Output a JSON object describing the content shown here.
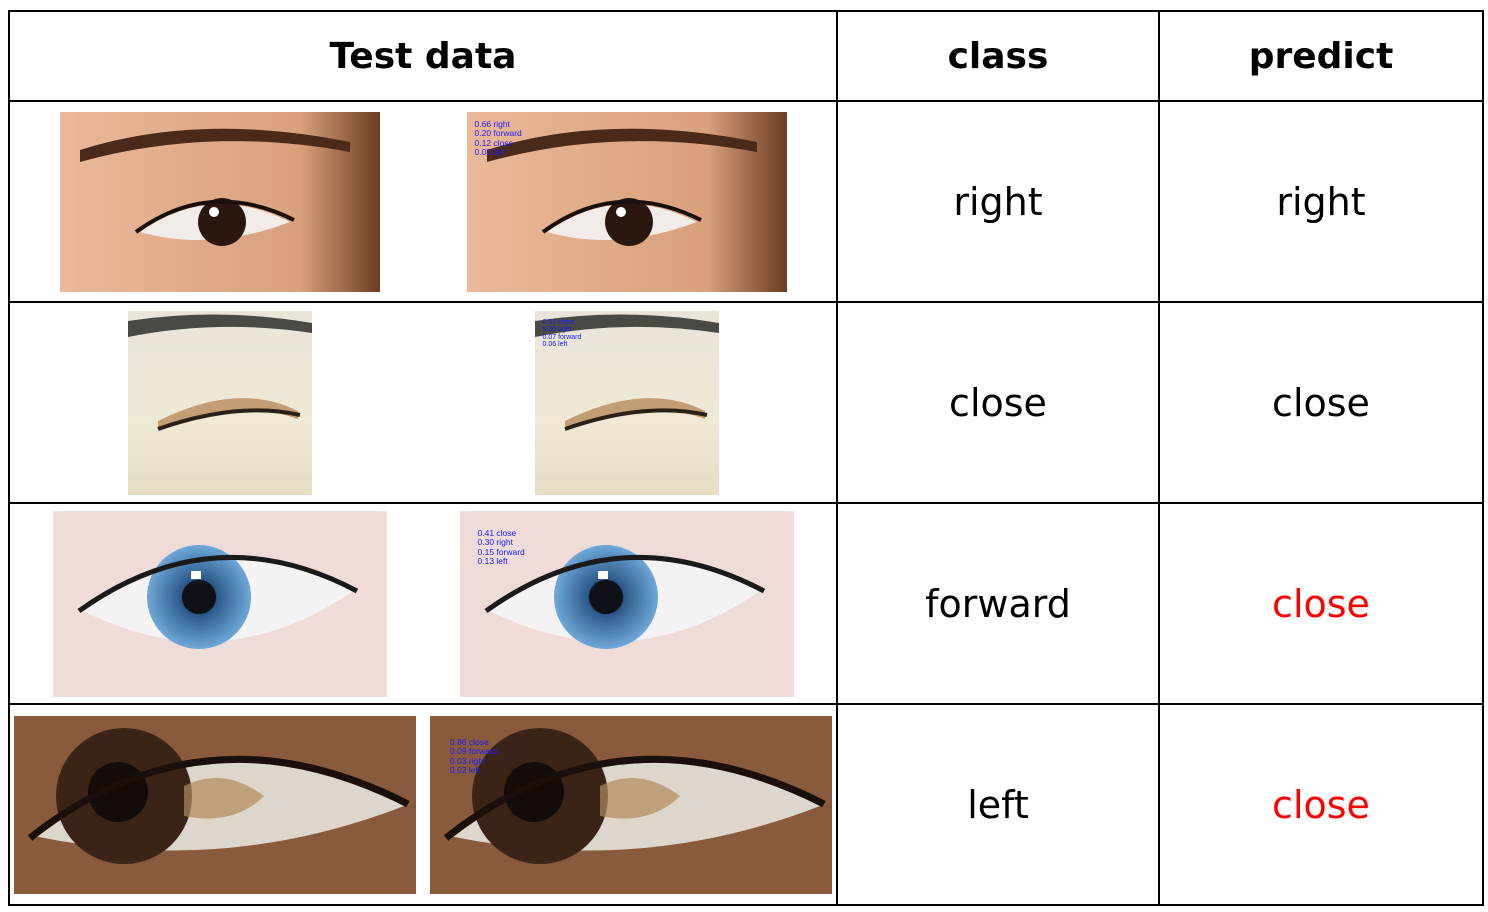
{
  "headers": {
    "test_data": "Test data",
    "class": "class",
    "predict": "predict"
  },
  "colors": {
    "border": "#000000",
    "correct": "#000000",
    "wrong": "#ff0000",
    "overlay_text": "#1a1aff"
  },
  "rows": [
    {
      "class": "right",
      "predict": "right",
      "correct": true,
      "probs": [
        "0.66 right",
        "0.20 forward",
        "0.12 close",
        "0.03 left"
      ]
    },
    {
      "class": "close",
      "predict": "close",
      "correct": true,
      "probs": [
        "0.57 close",
        "0.35 right",
        "0.07 forward",
        "0.06 left"
      ]
    },
    {
      "class": "forward",
      "predict": "close",
      "correct": false,
      "probs": [
        "0.41 close",
        "0.30 right",
        "0.15 forward",
        "0.13 left"
      ]
    },
    {
      "class": "left",
      "predict": "close",
      "correct": false,
      "probs": [
        "0.86 close",
        "0.09 forward",
        "0.03 right",
        "0.02 left"
      ]
    }
  ]
}
